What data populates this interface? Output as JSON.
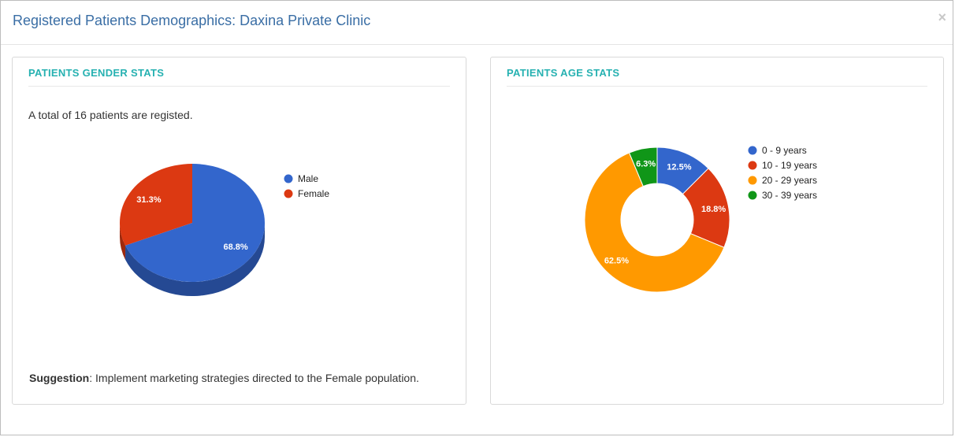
{
  "modal": {
    "title": "Registered Patients Demographics: Daxina Private Clinic",
    "close_glyph": "×",
    "close_icon": "close-icon"
  },
  "gender_panel": {
    "title": "PATIENTS GENDER STATS",
    "total_text": "A total of 16 patients are registed.",
    "suggestion_label": "Suggestion",
    "suggestion_text": ": Implement marketing strategies directed to the Female population."
  },
  "age_panel": {
    "title": "PATIENTS AGE STATS"
  },
  "colors": {
    "accent": "#26b1b1",
    "title_blue": "#3a6ea5",
    "blue": "#3366cc",
    "red": "#dc3912",
    "orange": "#ff9900",
    "green": "#109618"
  },
  "chart_data": [
    {
      "type": "pie",
      "style": "3d",
      "title": "",
      "legend_position": "right",
      "categories": [
        "Male",
        "Female"
      ],
      "values": [
        68.8,
        31.3
      ],
      "labels": [
        "68.8%",
        "31.3%"
      ],
      "colors": [
        "#3366cc",
        "#dc3912"
      ]
    },
    {
      "type": "pie",
      "style": "donut",
      "title": "",
      "legend_position": "right",
      "categories": [
        "0 - 9 years",
        "10 - 19 years",
        "20 - 29 years",
        "30 - 39 years"
      ],
      "values": [
        12.5,
        18.8,
        62.5,
        6.3
      ],
      "labels": [
        "12.5%",
        "18.8%",
        "62.5%",
        "6.3%"
      ],
      "colors": [
        "#3366cc",
        "#dc3912",
        "#ff9900",
        "#109618"
      ]
    }
  ]
}
